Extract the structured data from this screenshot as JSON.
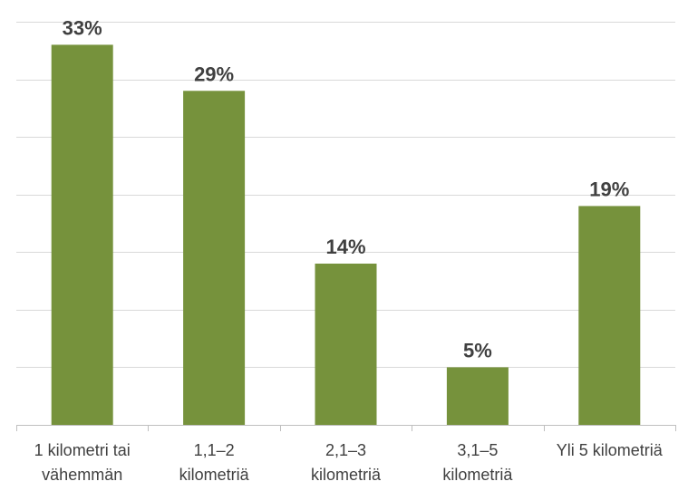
{
  "chart_data": {
    "type": "bar",
    "categories": [
      [
        "1 kilometri tai",
        "vähemmän"
      ],
      [
        "1,1–2",
        "kilometriä"
      ],
      [
        "2,1–3",
        "kilometriä"
      ],
      [
        "3,1–5",
        "kilometriä"
      ],
      [
        "Yli 5 kilometriä"
      ]
    ],
    "values": [
      33,
      29,
      14,
      5,
      19
    ],
    "value_labels": [
      "33%",
      "29%",
      "14%",
      "5%",
      "19%"
    ],
    "unit": "%",
    "ylim": [
      0,
      35
    ],
    "grid": true,
    "legend": "none",
    "colors": {
      "bar": "#76923c",
      "text": "#404040",
      "grid": "#d9d9d9"
    }
  }
}
